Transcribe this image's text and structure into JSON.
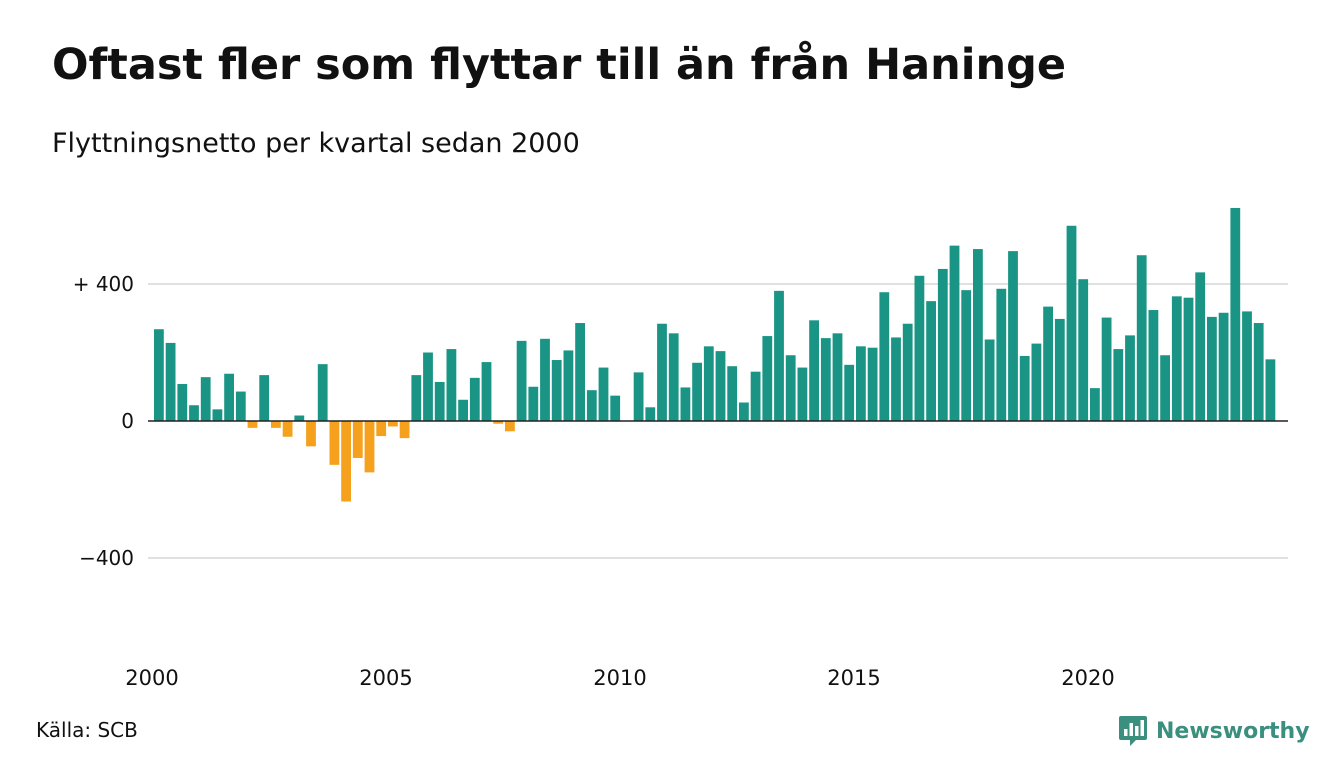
{
  "header": {
    "title": "Oftast fler som flyttar till än från Haninge",
    "subtitle": "Flyttningsnetto per kvartal sedan 2000"
  },
  "footer": {
    "source": "Källa: SCB",
    "logo_text": "Newsworthy",
    "logo_icon": "newsworthy-logo-icon"
  },
  "colors": {
    "positive": "#1a9585",
    "negative": "#f5a11d",
    "grid": "#e0e0e0",
    "axis": "#222222",
    "logo": "#3a8f7f"
  },
  "chart_data": {
    "type": "bar",
    "x_start_year": 2000,
    "x_unit": "quarter",
    "values": [
      268,
      228,
      108,
      46,
      128,
      34,
      138,
      86,
      -20,
      134,
      -20,
      -46,
      16,
      -74,
      166,
      -128,
      -235,
      -108,
      -150,
      -44,
      -16,
      -50,
      134,
      200,
      114,
      210,
      62,
      126,
      172,
      -8,
      -30,
      234,
      100,
      240,
      178,
      206,
      286,
      90,
      156,
      74,
      0,
      142,
      40,
      284,
      256,
      98,
      170,
      218,
      204,
      160,
      54,
      144,
      248,
      380,
      192,
      156,
      294,
      242,
      256,
      164,
      218,
      214,
      376,
      244,
      284,
      424,
      350,
      444,
      512,
      382,
      502,
      238,
      386,
      496,
      190,
      226,
      334,
      298,
      570,
      414,
      96,
      302,
      210,
      250,
      484,
      324,
      192,
      364,
      360,
      434,
      304,
      316,
      622,
      320,
      286,
      180
    ],
    "x_ticks": [
      "2000",
      "2005",
      "2010",
      "2015",
      "2020"
    ],
    "y_ticks": [
      {
        "value": 400,
        "label": "+ 400"
      },
      {
        "value": 0,
        "label": "0"
      },
      {
        "value": -400,
        "label": "−400"
      }
    ],
    "ylim": [
      -650,
      650
    ],
    "grid": true,
    "legend": "none"
  }
}
